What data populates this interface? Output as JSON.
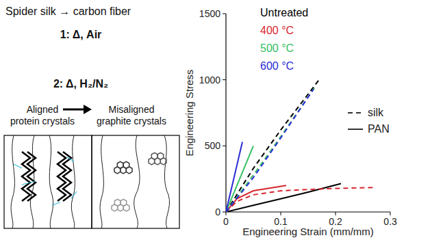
{
  "chart_data": {
    "type": "line",
    "ylabel": "Engineering Stress",
    "xlabel": "Engineering Strain (mm/mm)",
    "xlim": [
      0,
      0.3
    ],
    "xticks": [
      0,
      0.1,
      0.2,
      0.3
    ],
    "ylim": [
      0,
      1500
    ],
    "yticks": [
      0,
      500,
      1000,
      1500
    ],
    "legend": "top-left",
    "legend_items": {
      "treatments": [
        {
          "label": "Untreated",
          "color": "#000000"
        },
        {
          "label": "400 °C",
          "color": "#d9262f"
        },
        {
          "label": "500 °C",
          "color": "#35c062"
        },
        {
          "label": "600 °C",
          "color": "#2b2bd6"
        }
      ],
      "materials": [
        {
          "label": "silk",
          "line_style": "dashed"
        },
        {
          "label": "PAN",
          "line_style": "solid"
        }
      ]
    },
    "series": [
      {
        "color": "#000000",
        "line_style": "solid",
        "x": [
          0,
          0.05,
          0.1,
          0.15,
          0.21
        ],
        "values": [
          0,
          50,
          100,
          150,
          215
        ]
      },
      {
        "color": "#000000",
        "line_style": "dashed",
        "x": [
          0,
          0.05,
          0.1,
          0.17
        ],
        "values": [
          0,
          330,
          620,
          1000
        ]
      },
      {
        "color": "#d9262f",
        "line_style": "solid",
        "x": [
          0,
          0.02,
          0.05,
          0.11
        ],
        "values": [
          0,
          100,
          160,
          200
        ]
      },
      {
        "color": "#d9262f",
        "line_style": "dashed",
        "x": [
          0,
          0.02,
          0.05,
          0.1,
          0.15,
          0.2,
          0.27
        ],
        "values": [
          0,
          80,
          130,
          160,
          170,
          178,
          185
        ]
      },
      {
        "color": "#35c062",
        "line_style": "solid",
        "x": [
          0,
          0.05
        ],
        "values": [
          0,
          500
        ]
      },
      {
        "color": "#35c062",
        "line_style": "dashed",
        "x": [
          0,
          0.05,
          0.1,
          0.165
        ],
        "values": [
          0,
          280,
          570,
          960
        ]
      },
      {
        "color": "#2b2bd6",
        "line_style": "solid",
        "x": [
          0,
          0.03
        ],
        "values": [
          0,
          530
        ]
      },
      {
        "color": "#2b2bd6",
        "line_style": "dashed",
        "x": [
          0,
          0.05,
          0.1,
          0.16
        ],
        "values": [
          0,
          260,
          560,
          930
        ]
      }
    ]
  },
  "diagram": {
    "title": "Spider silk → carbon fiber",
    "steps": [
      "1: Δ, Air",
      "2: Δ, H₂/N₂"
    ],
    "before": "Aligned protein crystals",
    "after": "Misaligned graphite crystals"
  }
}
